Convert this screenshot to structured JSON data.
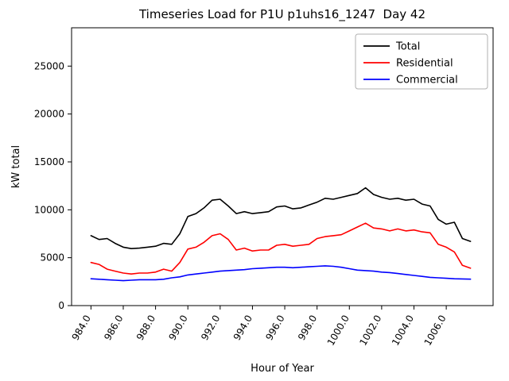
{
  "title": "Timeseries Load for P1U p1uhs16_1247  Day 42",
  "chart_data": {
    "type": "line",
    "title": "Timeseries Load for P1U p1uhs16_1247  Day 42",
    "xlabel": "Hour of Year",
    "ylabel": "kW total",
    "xlim": [
      982.8,
      1008.9
    ],
    "ylim": [
      0,
      29000
    ],
    "grid": false,
    "legend_position": "upper right",
    "xticks": [
      984,
      986,
      988,
      990,
      992,
      994,
      996,
      998,
      1000,
      1002,
      1004,
      1006
    ],
    "xtick_labels": [
      "984.0",
      "986.0",
      "988.0",
      "990.0",
      "992.0",
      "994.0",
      "996.0",
      "998.0",
      "1000.0",
      "1002.0",
      "1004.0",
      "1006.0"
    ],
    "yticks": [
      0,
      5000,
      10000,
      15000,
      20000,
      25000
    ],
    "ytick_labels": [
      "0",
      "5000",
      "10000",
      "15000",
      "20000",
      "25000"
    ],
    "x": [
      984.0,
      984.5,
      985.0,
      985.5,
      986.0,
      986.5,
      987.0,
      987.5,
      988.0,
      988.5,
      989.0,
      989.5,
      990.0,
      990.5,
      991.0,
      991.5,
      992.0,
      992.5,
      993.0,
      993.5,
      994.0,
      994.5,
      995.0,
      995.5,
      996.0,
      996.5,
      997.0,
      997.5,
      998.0,
      998.5,
      999.0,
      999.5,
      1000.0,
      1000.5,
      1001.0,
      1001.5,
      1002.0,
      1002.5,
      1003.0,
      1003.5,
      1004.0,
      1004.5,
      1005.0,
      1005.5,
      1006.0,
      1006.5,
      1007.0,
      1007.5
    ],
    "series": [
      {
        "name": "Total",
        "color": "#000000",
        "values": [
          7300,
          6900,
          7000,
          6500,
          6100,
          5950,
          6000,
          6100,
          6200,
          6500,
          6400,
          7500,
          9300,
          9600,
          10200,
          11000,
          11100,
          10400,
          9600,
          9800,
          9600,
          9700,
          9800,
          10300,
          10400,
          10100,
          10200,
          10500,
          10800,
          11200,
          11100,
          11300,
          11500,
          11700,
          12300,
          11600,
          11300,
          11100,
          11200,
          11000,
          11100,
          10600,
          10400,
          9000,
          8500,
          8700,
          7000,
          6700
        ]
      },
      {
        "name": "Residential",
        "color": "#ff0000",
        "values": [
          4500,
          4300,
          3800,
          3600,
          3400,
          3300,
          3400,
          3400,
          3500,
          3800,
          3600,
          4500,
          5900,
          6100,
          6600,
          7300,
          7500,
          6900,
          5800,
          6000,
          5700,
          5800,
          5800,
          6300,
          6400,
          6200,
          6300,
          6400,
          7000,
          7200,
          7300,
          7400,
          7800,
          8200,
          8600,
          8100,
          8000,
          7800,
          8000,
          7800,
          7900,
          7700,
          7600,
          6400,
          6100,
          5600,
          4200,
          3900
        ]
      },
      {
        "name": "Commercial",
        "color": "#0000ff",
        "values": [
          2800,
          2750,
          2700,
          2650,
          2600,
          2650,
          2700,
          2700,
          2700,
          2750,
          2900,
          3000,
          3200,
          3300,
          3400,
          3500,
          3600,
          3650,
          3700,
          3750,
          3850,
          3900,
          3950,
          4000,
          4000,
          3950,
          4000,
          4050,
          4100,
          4150,
          4100,
          4000,
          3850,
          3700,
          3650,
          3600,
          3500,
          3450,
          3350,
          3250,
          3150,
          3050,
          2950,
          2900,
          2850,
          2800,
          2780,
          2760
        ]
      }
    ]
  }
}
